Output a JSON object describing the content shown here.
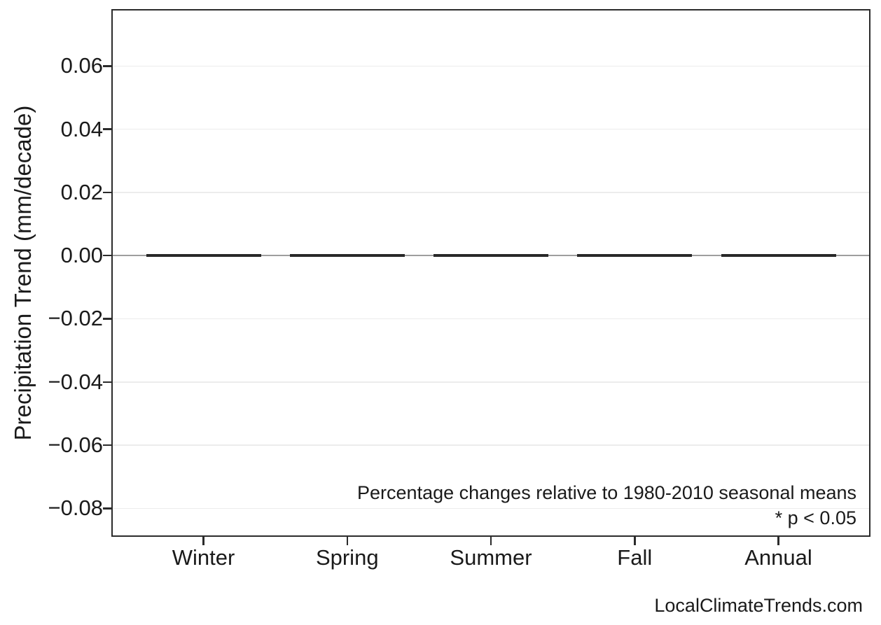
{
  "page": {
    "background": "#ffffff",
    "watermark": "LocalClimateTrends.com"
  },
  "chart_data": {
    "type": "bar",
    "categories": [
      "Winter",
      "Spring",
      "Summer",
      "Fall",
      "Annual"
    ],
    "values": [
      0.0,
      0.0,
      0.0,
      0.0,
      0.0
    ],
    "title": "",
    "xlabel": "",
    "ylabel": "Precipitation Trend (mm/decade)",
    "ylim": [
      -0.089,
      0.078
    ],
    "yticks": [
      0.06,
      0.04,
      0.02,
      0.0,
      -0.02,
      -0.04,
      -0.06,
      -0.08
    ],
    "ytick_labels": [
      "0.06",
      "0.04",
      "0.02",
      "0.00",
      "−0.02",
      "−0.04",
      "−0.06",
      "−0.08"
    ],
    "grid": true,
    "zero_line": true,
    "legend": false,
    "annotations": [
      "Percentage changes relative to 1980-2010 seasonal means",
      "* p < 0.05"
    ],
    "colors": {
      "bar": "#282828",
      "axis_border": "#2b2b2b",
      "gridline": "#ececec",
      "zero_line": "#9e9e9e",
      "text": "#1a1a1a"
    }
  }
}
